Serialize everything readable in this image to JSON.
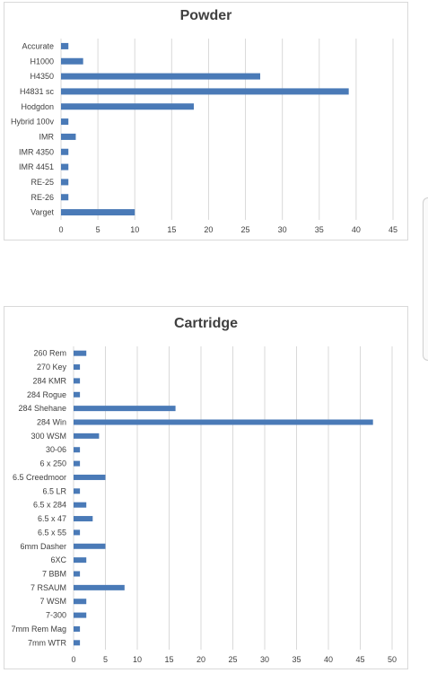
{
  "chart_data": [
    {
      "type": "bar",
      "orientation": "horizontal",
      "title": "Powder",
      "categories": [
        "Accurate",
        "H1000",
        "H4350",
        "H4831 sc",
        "Hodgdon",
        "Hybrid 100v",
        "IMR",
        "IMR 4350",
        "IMR 4451",
        "RE-25",
        "RE-26",
        "Varget"
      ],
      "values": [
        1,
        3,
        27,
        39,
        18,
        1,
        2,
        1,
        1,
        1,
        1,
        10
      ],
      "xlim": [
        0,
        45
      ],
      "xticks": [
        "0",
        "5",
        "10",
        "15",
        "20",
        "25",
        "30",
        "35",
        "40",
        "45"
      ],
      "grid": true,
      "color": "#4a7ab7"
    },
    {
      "type": "bar",
      "orientation": "horizontal",
      "title": "Cartridge",
      "categories": [
        "260 Rem",
        "270 Key",
        "284 KMR",
        "284 Rogue",
        "284 Shehane",
        "284 Win",
        "300 WSM",
        "30-06",
        "6 x 250",
        "6.5 Creedmoor",
        "6.5 LR",
        "6.5 x 284",
        "6.5 x 47",
        "6.5 x 55",
        "6mm Dasher",
        "6XC",
        "7 BBM",
        "7 RSAUM",
        "7 WSM",
        "7-300",
        "7mm Rem Mag",
        "7mm WTR"
      ],
      "values": [
        2,
        1,
        1,
        1,
        16,
        47,
        4,
        1,
        1,
        5,
        1,
        2,
        3,
        1,
        5,
        2,
        1,
        8,
        2,
        2,
        1,
        1
      ],
      "xlim": [
        0,
        50
      ],
      "xticks": [
        "0",
        "5",
        "10",
        "15",
        "20",
        "25",
        "30",
        "35",
        "40",
        "45",
        "50"
      ],
      "grid": true,
      "color": "#4a7ab7"
    }
  ]
}
